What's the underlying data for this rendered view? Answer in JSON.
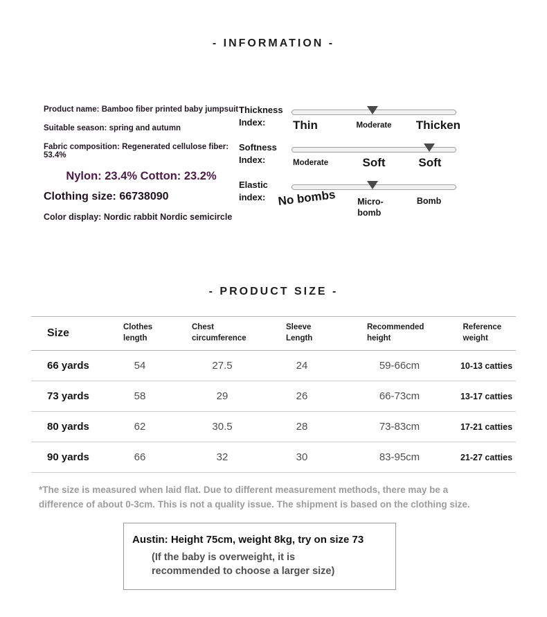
{
  "info": {
    "title": "- INFORMATION -",
    "details": {
      "product_name": "Product name: Bamboo fiber printed baby jumpsuit",
      "suitable_season": "Suitable season: spring and autumn",
      "fabric_composition": "Fabric composition: Regenerated cellulose fiber: 53.4%",
      "fabric_composition_2": "Nylon: 23.4% Cotton: 23.2%",
      "clothing_size": "Clothing size: 66738090",
      "color_display": "Color display: Nordic rabbit Nordic semicircle"
    }
  },
  "indexes": [
    {
      "label_line1": "Thickness",
      "label_line2": "Index:",
      "selected": "Moderate",
      "marker_percent": 49,
      "options": [
        "Thin",
        "Moderate",
        "Thicken"
      ]
    },
    {
      "label_line1": "Softness",
      "label_line2": "Index:",
      "selected": "Soft",
      "marker_percent": 84,
      "options": [
        "Moderate",
        "Soft",
        "Soft"
      ]
    },
    {
      "label_line1": "Elastic",
      "label_line2": "index:",
      "selected": "Micro-bomb",
      "marker_percent": 49,
      "options": [
        "No bombs",
        "Micro-bomb",
        "Bomb"
      ]
    }
  ],
  "size_section": {
    "title": "- PRODUCT SIZE -",
    "table": {
      "headers": [
        "Size",
        "Clothes length",
        "Chest circumference",
        "Sleeve Length",
        "Recommended height",
        "Reference weight"
      ],
      "rows": [
        [
          "66 yards",
          "54",
          "27.5",
          "24",
          "59-66cm",
          "10-13 catties"
        ],
        [
          "73 yards",
          "58",
          "29",
          "26",
          "66-73cm",
          "13-17 catties"
        ],
        [
          "80 yards",
          "62",
          "30.5",
          "28",
          "73-83cm",
          "17-21 catties"
        ],
        [
          "90 yards",
          "66",
          "32",
          "30",
          "83-95cm",
          "21-27 catties"
        ]
      ]
    },
    "footnote_line1": "*The size is measured when laid flat. Due to different measurement methods, there may be a",
    "footnote_line2": "difference of about 0-3cm. This is not a quality issue. The shipment is based on the clothing size."
  },
  "model_note": {
    "line1": "Austin: Height 75cm, weight 8kg, try on size 73",
    "line2": "(If the baby is overweight, it is",
    "line3": "recommended to choose a larger size)"
  },
  "colors": {
    "info_highlight_text": "#4d1a47",
    "info_text": "#241722",
    "slider_marker": "#4a4a4a",
    "table_line": "#b5b5b5",
    "footnote_text": "#9c9c9c"
  }
}
